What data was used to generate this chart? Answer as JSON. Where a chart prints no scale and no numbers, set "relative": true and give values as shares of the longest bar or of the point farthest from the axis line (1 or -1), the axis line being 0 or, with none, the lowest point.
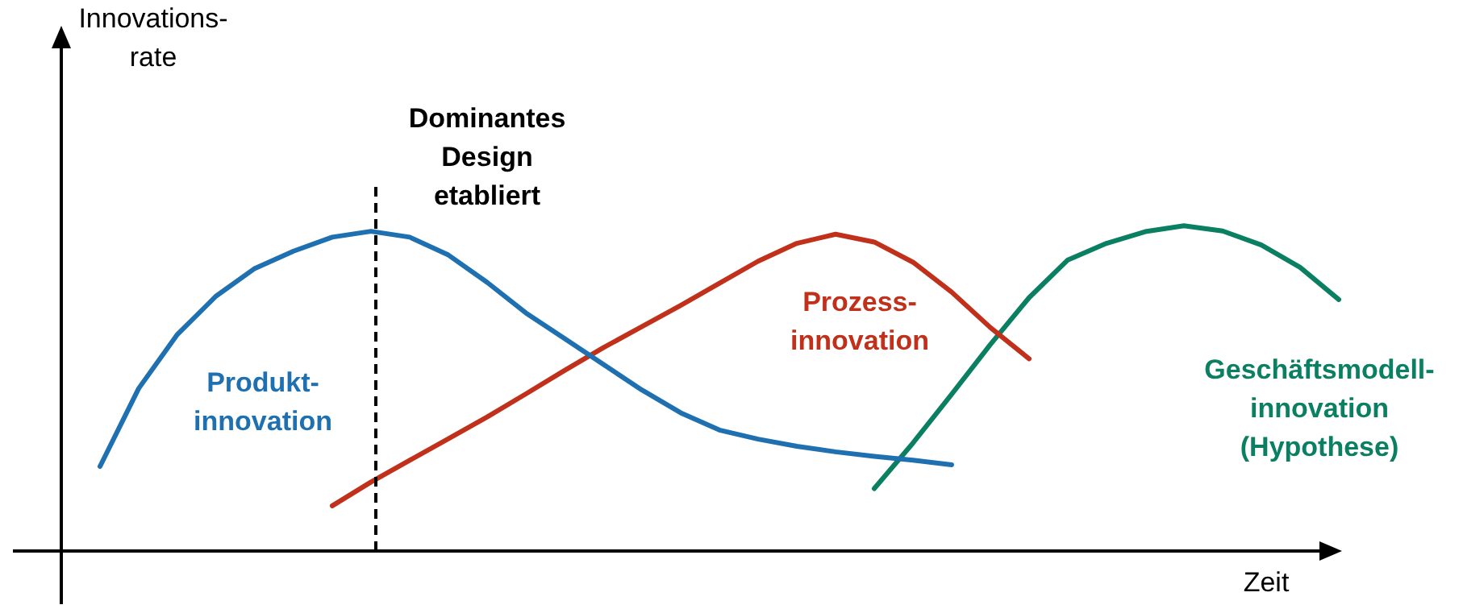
{
  "chart_data": {
    "type": "line",
    "relative": true,
    "xlabel": "Zeit",
    "tick_labels": false,
    "legend": false,
    "marker": "none",
    "line_style": "solid",
    "categories": [
      null,
      null,
      null,
      null,
      null,
      null,
      null,
      null,
      null,
      null,
      null,
      null,
      null,
      null,
      null,
      null,
      null,
      null,
      null,
      null,
      null,
      null,
      null,
      null,
      null,
      null,
      null,
      null,
      null,
      null,
      null,
      null,
      null,
      null,
      null
    ],
    "series": [
      {
        "name": "Produkt-\ninnovation",
        "color": "#1f70b0",
        "values": [
          null,
          0.26,
          0.5,
          0.666,
          0.784,
          0.869,
          0.922,
          0.965,
          0.983,
          0.965,
          0.91,
          0.826,
          0.732,
          0.653,
          0.574,
          0.495,
          0.425,
          0.372,
          0.344,
          0.322,
          0.305,
          0.291,
          0.279,
          0.265,
          null,
          null,
          null,
          null,
          null,
          null,
          null,
          null,
          null,
          null,
          null
        ]
      },
      {
        "name": "Prozess-\ninnovation",
        "color": "#c0301a",
        "values": [
          null,
          null,
          null,
          null,
          null,
          null,
          null,
          0.139,
          0.212,
          0.279,
          0.345,
          0.412,
          0.483,
          0.555,
          0.625,
          0.69,
          0.755,
          0.823,
          0.891,
          0.946,
          0.974,
          0.95,
          0.888,
          0.796,
          0.687,
          0.591,
          null,
          null,
          null,
          null,
          null,
          null,
          null,
          null,
          null
        ]
      },
      {
        "name": "Geschäftsmodell-\ninnovation\n(Hypothese)",
        "color": "#0a7f62",
        "values": [
          null,
          null,
          null,
          null,
          null,
          null,
          null,
          null,
          null,
          null,
          null,
          null,
          null,
          null,
          null,
          null,
          null,
          null,
          null,
          null,
          null,
          0.192,
          0.332,
          0.482,
          0.635,
          0.779,
          0.895,
          0.946,
          0.982,
          1,
          0.984,
          0.941,
          0.872,
          0.773,
          null
        ]
      }
    ],
    "annotations": [
      "Innovations-\nrate",
      "Dominantes\nDesign\netabliert"
    ]
  }
}
